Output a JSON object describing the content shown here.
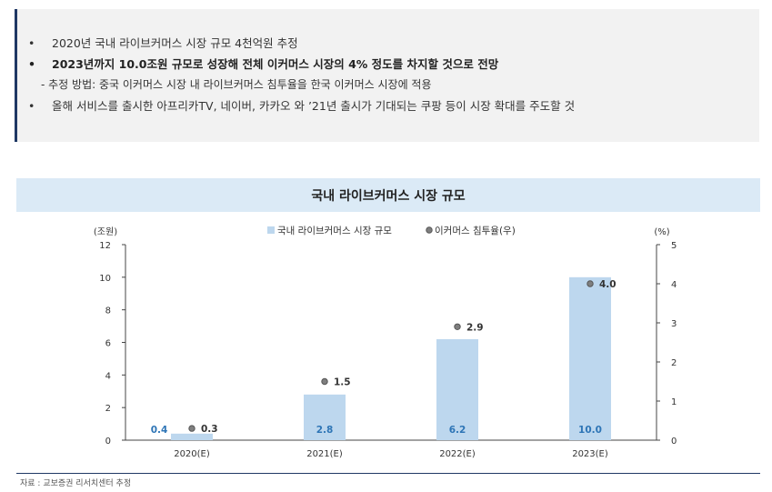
{
  "summary": {
    "items": [
      {
        "bullet": "•",
        "text": "2020년 국내 라이브커머스 시장 규모 4천억원 추정",
        "bold": false
      },
      {
        "bullet": "•",
        "text": "2023년까지 10.0조원 규모로 성장해 전체 이커머스 시장의 4% 정도를 차지할 것으로 전망",
        "bold": true
      },
      {
        "bullet": "",
        "text": "- 추정 방법: 중국 이커머스 시장 내 라이브커머스 침투율을 한국 이커머스 시장에 적용",
        "bold": false
      },
      {
        "bullet": "•",
        "text": "올해 서비스를 출시한 아프리카TV, 네이버, 카카오 와 ’21년 출시가 기대되는 쿠팡 등이 시장 확대를 주도할 것",
        "bold": false
      }
    ]
  },
  "chart_data": {
    "type": "bar",
    "title": "국내 라이브커머스 시장 규모",
    "categories": [
      "2020(E)",
      "2021(E)",
      "2022(E)",
      "2023(E)"
    ],
    "series": [
      {
        "name": "국내 라이브커머스 시장 규모",
        "type": "bar",
        "axis": "left",
        "values": [
          0.4,
          2.8,
          6.2,
          10.0
        ],
        "labels": [
          "0.4",
          "2.8",
          "6.2",
          "10.0"
        ],
        "color": "#bdd7ee",
        "label_color": "#2e75b6"
      },
      {
        "name": "이커머스 침투율(우)",
        "type": "scatter",
        "axis": "right",
        "values": [
          0.3,
          1.5,
          2.9,
          4.0
        ],
        "labels": [
          "0.3",
          "1.5",
          "2.9",
          "4.0"
        ],
        "color": "#7f7f7f"
      }
    ],
    "y_left": {
      "label": "(조원)",
      "ylim": [
        0,
        12
      ],
      "ticks": [
        "0",
        "2",
        "4",
        "6",
        "8",
        "10",
        "12"
      ]
    },
    "y_right": {
      "label": "(%)",
      "ylim": [
        0,
        5
      ],
      "ticks": [
        "0",
        "1",
        "2",
        "3",
        "4",
        "5"
      ]
    },
    "legend_position": "top-center",
    "grid": false
  },
  "source": "자료 : 교보증권 리서치센터 추정"
}
